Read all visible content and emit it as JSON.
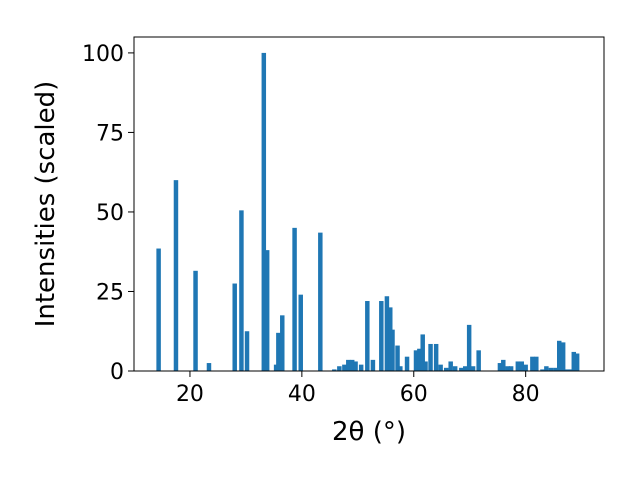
{
  "chart_data": {
    "type": "bar",
    "title": "",
    "xlabel": "2θ (°)",
    "ylabel": "Intensities (scaled)",
    "xlim": [
      10,
      94
    ],
    "ylim": [
      0,
      105
    ],
    "xticks": [
      20,
      40,
      60,
      80
    ],
    "yticks": [
      0,
      25,
      50,
      75,
      100
    ],
    "grid": false,
    "bar_color": "#1f77b4",
    "bar_width": 0.8,
    "series": [
      {
        "x": [
          14.4,
          17.5,
          21.0,
          23.4,
          28.0,
          29.2,
          30.2,
          33.2,
          33.8,
          35.4,
          35.8,
          36.5,
          38.7,
          39.8,
          43.3,
          45.8,
          46.7,
          47.6,
          48.3,
          49.0,
          49.6,
          50.6,
          51.7,
          52.7,
          54.2,
          55.2,
          55.8,
          56.2,
          57.1,
          57.6,
          58.8,
          60.4,
          61.0,
          61.6,
          62.1,
          63.0,
          64.0,
          64.8,
          65.8,
          66.6,
          67.4,
          68.5,
          69.2,
          69.9,
          70.6,
          71.6,
          75.4,
          76.0,
          76.8,
          77.4,
          78.6,
          79.3,
          80.0,
          81.2,
          81.9,
          83.0,
          83.7,
          84.5,
          85.3,
          86.0,
          86.7,
          87.4,
          88.1,
          88.6,
          89.2
        ]
      }
    ],
    "values": [
      38.5,
      60,
      31.5,
      2.5,
      27.5,
      50.5,
      12.5,
      100,
      38,
      2,
      12,
      17.5,
      45,
      24,
      43.5,
      0.5,
      1.5,
      2,
      3.5,
      3.5,
      3,
      2,
      22,
      3.5,
      22,
      23.5,
      20,
      13,
      8,
      1.5,
      4.5,
      6.5,
      7,
      11.5,
      3,
      8.5,
      8.5,
      2,
      1,
      3,
      1.5,
      1,
      1.5,
      14.5,
      1.5,
      6.5,
      2.5,
      3.5,
      1.5,
      1.5,
      3,
      3,
      2,
      4.5,
      4.5,
      0.5,
      1.5,
      1,
      1,
      9.5,
      9,
      0.5,
      0.5,
      6,
      5.5
    ]
  }
}
